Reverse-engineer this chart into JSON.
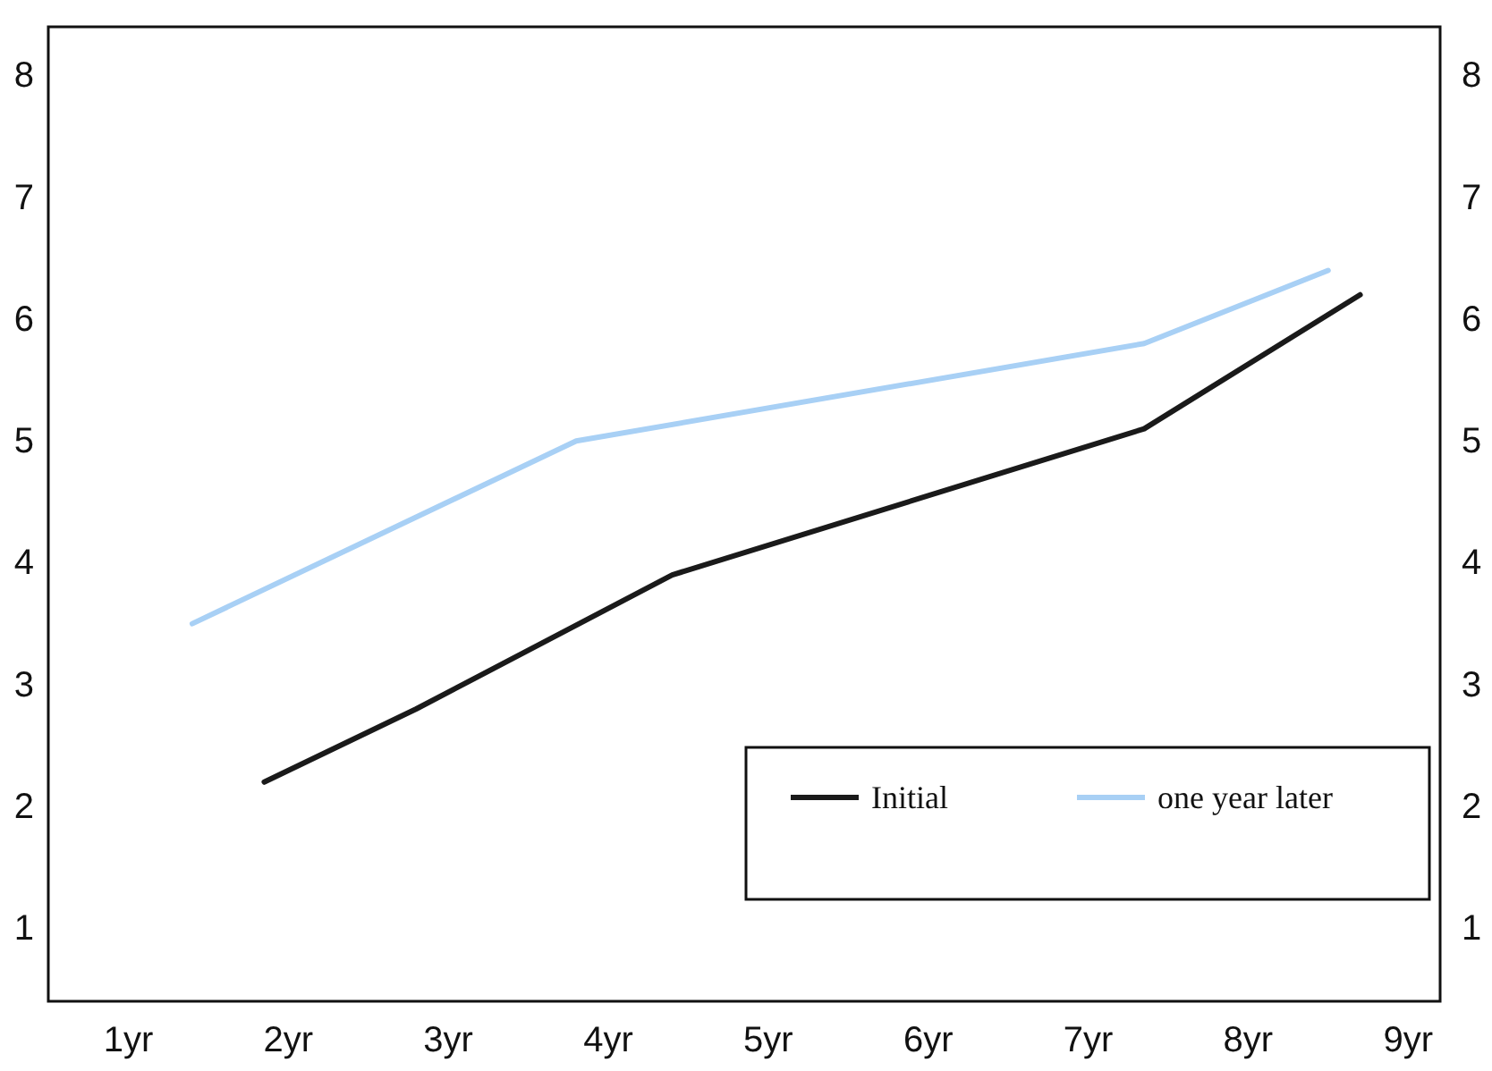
{
  "chart_data": {
    "type": "line",
    "xlim": [
      0.5,
      9.2
    ],
    "xticks": [
      {
        "value": 1,
        "label": "1yr"
      },
      {
        "value": 2,
        "label": "2yr"
      },
      {
        "value": 3,
        "label": "3yr"
      },
      {
        "value": 4,
        "label": "4yr"
      },
      {
        "value": 5,
        "label": "5yr"
      },
      {
        "value": 6,
        "label": "6yr"
      },
      {
        "value": 7,
        "label": "7yr"
      },
      {
        "value": 8,
        "label": "8yr"
      },
      {
        "value": 9,
        "label": "9yr"
      }
    ],
    "ylim": [
      0.4,
      8.4
    ],
    "yticks": [
      1,
      2,
      3,
      4,
      5,
      6,
      7,
      8
    ],
    "y2lim": [
      0.4,
      8.4
    ],
    "y2ticks": [
      1,
      2,
      3,
      4,
      5,
      6,
      7,
      8
    ],
    "grid": false,
    "legend": "bottom right",
    "marker": "none",
    "line_style": "solid",
    "series": [
      {
        "name": "Initial",
        "color": "#1a1a1a",
        "x": [
          1.85,
          2.8,
          4.4,
          7.35,
          8.7
        ],
        "values": [
          2.2,
          2.8,
          3.9,
          5.1,
          6.2
        ]
      },
      {
        "name": "one year later",
        "color": "#a8d0f5",
        "x": [
          1.4,
          3.8,
          7.35,
          8.5
        ],
        "values": [
          3.5,
          5.0,
          5.8,
          6.4
        ]
      }
    ]
  }
}
